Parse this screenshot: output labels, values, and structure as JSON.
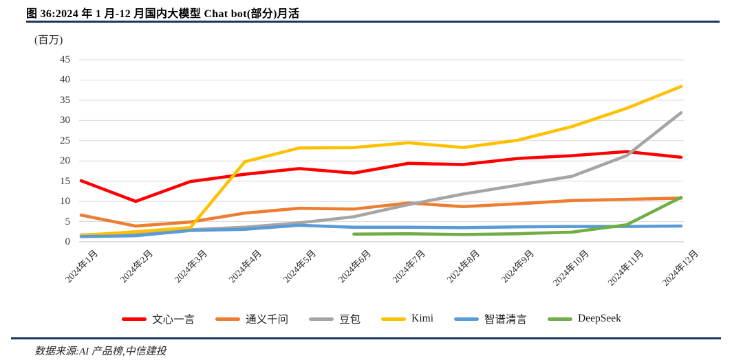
{
  "header": {
    "title": "图 36:2024 年 1 月-12 月国内大模型 Chat bot(部分)月活"
  },
  "chart_data": {
    "type": "line",
    "title": "图 36:2024 年 1 月-12 月国内大模型 Chat bot(部分)月活",
    "unit_label": "(百万)",
    "xlabel": "",
    "ylabel": "(百万)",
    "ylim": [
      0,
      45
    ],
    "yticks": [
      0,
      5,
      10,
      15,
      20,
      25,
      30,
      35,
      40,
      45
    ],
    "grid": true,
    "legend_position": "bottom",
    "categories": [
      "2024年1月",
      "2024年2月",
      "2024年3月",
      "2024年4月",
      "2024年5月",
      "2024年6月",
      "2024年7月",
      "2024年8月",
      "2024年9月",
      "2024年10月",
      "2024年11月",
      "2024年12月"
    ],
    "series": [
      {
        "id": "wenxin",
        "name": "文心一言",
        "color": "#FF0000",
        "values": [
          15.1,
          10.0,
          14.9,
          16.7,
          18.1,
          17.0,
          19.4,
          19.1,
          20.6,
          21.3,
          22.3,
          20.9
        ]
      },
      {
        "id": "tongyi",
        "name": "通义千问",
        "color": "#ED7D31",
        "values": [
          6.6,
          3.9,
          4.9,
          7.1,
          8.3,
          8.1,
          9.6,
          8.7,
          9.4,
          10.2,
          10.5,
          10.8
        ]
      },
      {
        "id": "doubao",
        "name": "豆包",
        "color": "#A5A5A5",
        "values": [
          1.7,
          2.2,
          3.0,
          3.6,
          4.7,
          6.2,
          9.2,
          11.8,
          14.0,
          16.2,
          21.3,
          31.9
        ]
      },
      {
        "id": "kimi",
        "name": "Kimi",
        "color": "#FFC000",
        "values": [
          1.6,
          2.5,
          3.5,
          19.8,
          23.2,
          23.3,
          24.5,
          23.3,
          25.1,
          28.5,
          33.0,
          38.4
        ]
      },
      {
        "id": "zhipu",
        "name": "智谱清言",
        "color": "#5B9BD5",
        "values": [
          1.3,
          1.5,
          2.8,
          3.1,
          4.1,
          3.6,
          3.6,
          3.5,
          3.7,
          3.8,
          3.8,
          3.9
        ]
      },
      {
        "id": "deepseek",
        "name": "DeepSeek",
        "color": "#70AD47",
        "values": [
          null,
          null,
          null,
          null,
          null,
          1.9,
          2.0,
          1.8,
          2.0,
          2.4,
          4.2,
          11.0
        ]
      }
    ]
  },
  "footer": {
    "source": "数据来源:AI 产品榜,中信建投"
  }
}
